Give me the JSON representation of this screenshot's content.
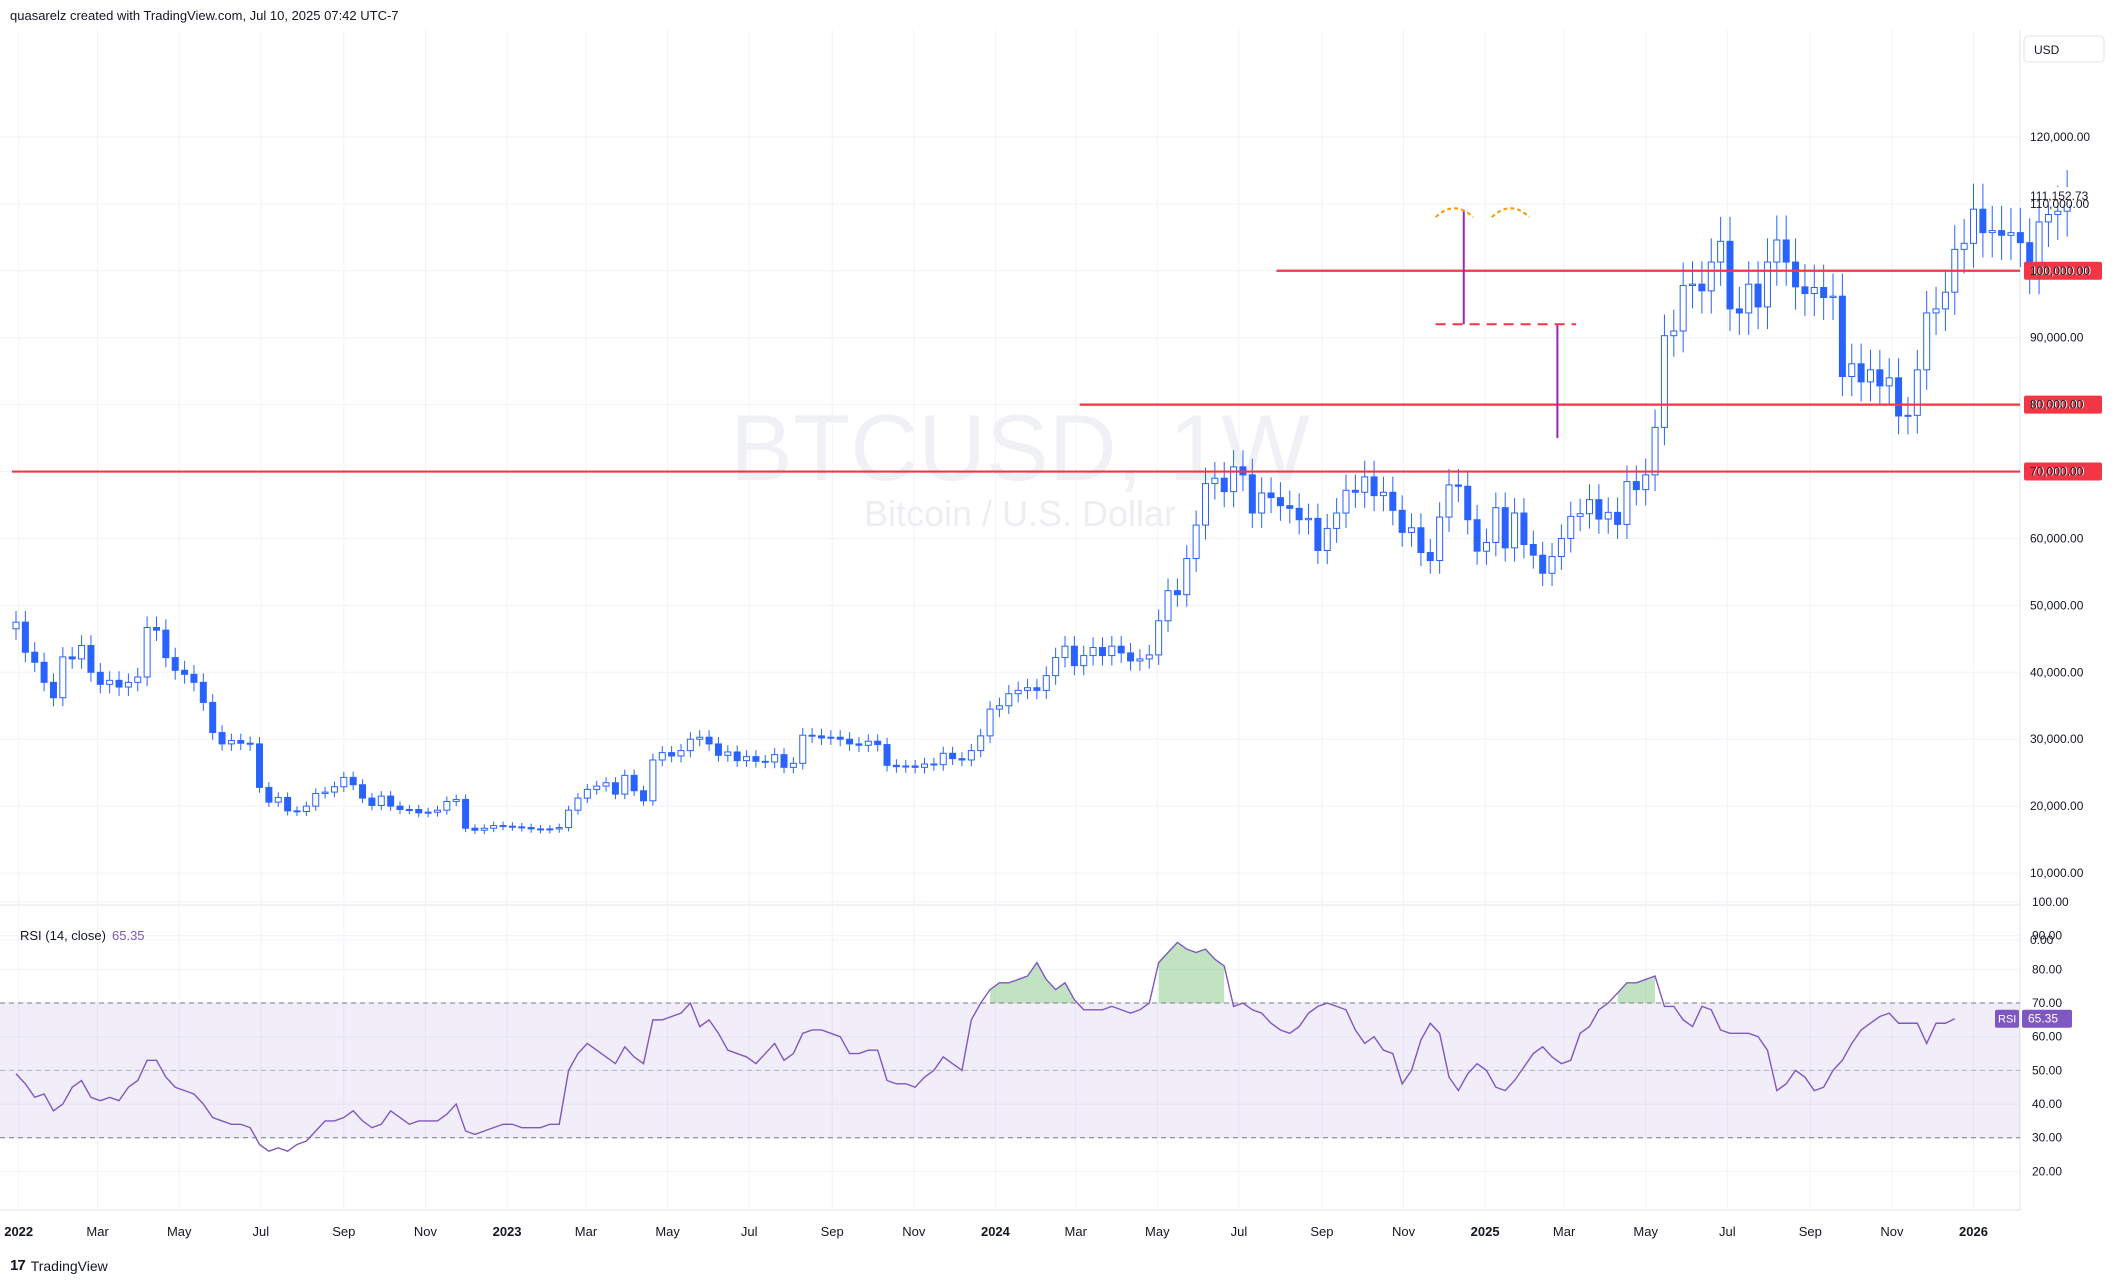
{
  "header": {
    "caption": "quasarelz created with TradingView.com, Jul 10, 2025 07:42 UTC-7"
  },
  "footer": {
    "logo_text": "17",
    "brand": "TradingView",
    "logo_icon": "tradingview-logo-icon"
  },
  "watermark": {
    "symbol": "BTCUSD, 1W",
    "description": "Bitcoin / U.S. Dollar"
  },
  "colors": {
    "up_border": "#2962ff",
    "up_fill": "#ffffff",
    "down": "#2962ff",
    "level_line": "#f23645",
    "rsi_line": "#7e57c2",
    "rsi_band": "#7e57c2",
    "overbought_fill": "#4caf50",
    "purple_wick": "#9c27b0",
    "dome": "#ff9800",
    "current_price_bg": "#ffffff"
  },
  "chart_data": [
    {
      "type": "candlestick",
      "symbol": "BTCUSD, 1W",
      "title": "Bitcoin / U.S. Dollar",
      "currency": "USD",
      "ylim": [
        0,
        130000
      ],
      "y_ticks": [
        0,
        10000,
        20000,
        30000,
        40000,
        50000,
        60000,
        70000,
        80000,
        90000,
        100000,
        110000,
        120000
      ],
      "y_tick_labels": [
        "0.00",
        "10,000.00",
        "20,000.00",
        "30,000.00",
        "40,000.00",
        "50,000.00",
        "60,000.00",
        "70,000.00",
        "80,000.00",
        "90,000.00",
        "100,000.00",
        "110,000.00",
        "120,000.00"
      ],
      "x_labels": [
        {
          "date": "2022-01-01",
          "label": "2022"
        },
        {
          "date": "2022-03-01",
          "label": "Mar"
        },
        {
          "date": "2022-05-01",
          "label": "May"
        },
        {
          "date": "2022-07-01",
          "label": "Jul"
        },
        {
          "date": "2022-09-01",
          "label": "Sep"
        },
        {
          "date": "2022-11-01",
          "label": "Nov"
        },
        {
          "date": "2023-01-01",
          "label": "2023"
        },
        {
          "date": "2023-03-01",
          "label": "Mar"
        },
        {
          "date": "2023-05-01",
          "label": "May"
        },
        {
          "date": "2023-07-01",
          "label": "Jul"
        },
        {
          "date": "2023-09-01",
          "label": "Sep"
        },
        {
          "date": "2023-11-01",
          "label": "Nov"
        },
        {
          "date": "2024-01-01",
          "label": "2024"
        },
        {
          "date": "2024-03-01",
          "label": "Mar"
        },
        {
          "date": "2024-05-01",
          "label": "May"
        },
        {
          "date": "2024-07-01",
          "label": "Jul"
        },
        {
          "date": "2024-09-01",
          "label": "Sep"
        },
        {
          "date": "2024-11-01",
          "label": "Nov"
        },
        {
          "date": "2025-01-01",
          "label": "2025"
        },
        {
          "date": "2025-03-01",
          "label": "Mar"
        },
        {
          "date": "2025-05-01",
          "label": "May"
        },
        {
          "date": "2025-07-01",
          "label": "Jul"
        },
        {
          "date": "2025-09-01",
          "label": "Sep"
        },
        {
          "date": "2025-11-01",
          "label": "Nov"
        },
        {
          "date": "2026-01-01",
          "label": "2026"
        }
      ],
      "x_range": [
        "2021-12-27",
        "2026-02-01"
      ],
      "closes": [
        47500,
        43000,
        41500,
        38500,
        36200,
        42300,
        42000,
        44000,
        40000,
        38200,
        38800,
        37800,
        38500,
        39300,
        46700,
        46300,
        42200,
        40300,
        39700,
        38500,
        35500,
        31000,
        29300,
        29800,
        29400,
        29300,
        22800,
        20600,
        21300,
        19300,
        19200,
        20000,
        21900,
        22100,
        22900,
        24300,
        23200,
        21200,
        20100,
        21500,
        20000,
        19500,
        19500,
        19000,
        19100,
        19400,
        20700,
        21000,
        16700,
        16400,
        16700,
        17100,
        17000,
        16900,
        16800,
        16600,
        16500,
        16600,
        16800,
        19400,
        21200,
        22500,
        23000,
        23500,
        21800,
        24600,
        22300,
        20800,
        26900,
        28000,
        27500,
        28300,
        30000,
        30300,
        29300,
        27600,
        28100,
        26800,
        27400,
        26700,
        26600,
        27700,
        25800,
        26400,
        30600,
        30500,
        30200,
        30300,
        30000,
        29300,
        29100,
        29700,
        29200,
        26100,
        25900,
        26000,
        25800,
        26300,
        26200,
        27900,
        27100,
        26900,
        28300,
        30500,
        34500,
        35000,
        36800,
        37300,
        37700,
        37300,
        39500,
        42200,
        43900,
        41000,
        42500,
        43700,
        42500,
        43900,
        42900,
        41700,
        42000,
        42600,
        47700,
        52200,
        51600,
        57000,
        62000,
        68200,
        69000,
        67000,
        70700,
        69500,
        63800,
        66800,
        66100,
        64900,
        64500,
        62800,
        63000,
        58200,
        61500,
        63800,
        67200,
        66900,
        69200,
        66400,
        66900,
        64200,
        60900,
        61600,
        57900,
        56700,
        63200,
        68000,
        67800,
        62800,
        58100,
        59400,
        64600,
        58600,
        63800,
        59100,
        57500,
        54800,
        57300,
        60000,
        63300,
        63700,
        65800,
        62900,
        63900,
        62100,
        68500,
        67300,
        69500,
        76600,
        90300,
        91000,
        97800,
        98000,
        97000,
        101300,
        104400,
        94300,
        93700,
        98000,
        94600,
        101300,
        104600,
        101300,
        97600,
        96600,
        97500,
        96000,
        96200,
        84200,
        86100,
        83400,
        85200,
        82800,
        84000,
        78300,
        78400,
        85200,
        93700,
        94300,
        96800,
        103200,
        104100,
        109200,
        105700,
        106000,
        105300,
        105700,
        104200,
        100000,
        107300,
        108400,
        108900,
        111152.73
      ],
      "levels": [
        {
          "price": 100000,
          "label": "100,000.00",
          "from": "2024-07-29"
        },
        {
          "price": 80000,
          "label": "80,000.00",
          "from": "2024-03-04"
        },
        {
          "price": 70000,
          "label": "70,000.00",
          "from": "2021-12-27"
        }
      ],
      "current_price": 111152.73,
      "current_price_label": "111,152.73",
      "annotations": [
        {
          "kind": "vertical-line",
          "date": "2024-12-16",
          "from": 92000,
          "to": 109000
        },
        {
          "kind": "vertical-line",
          "date": "2025-02-24",
          "from": 75000,
          "to": 92000
        },
        {
          "kind": "dashed-neckline",
          "from_date": "2024-11-25",
          "to_date": "2025-03-10",
          "price": 92000
        },
        {
          "kind": "dome",
          "from_date": "2024-11-25",
          "to_date": "2024-12-23",
          "price": 108000
        },
        {
          "kind": "dome",
          "from_date": "2025-01-06",
          "to_date": "2025-02-03",
          "price": 108000
        }
      ]
    },
    {
      "type": "line",
      "title": "RSI (14, close)",
      "title_prefix": "RSI (14, close)",
      "value_label": "65.35",
      "badge": "RSI",
      "ylim": [
        13,
        100
      ],
      "y_ticks": [
        20,
        30,
        40,
        50,
        60,
        70,
        80,
        90,
        100
      ],
      "y_tick_labels": [
        "20.00",
        "30.00",
        "40.00",
        "50.00",
        "60.00",
        "70.00",
        "80.00",
        "90.00",
        "100.00"
      ],
      "band": [
        30,
        70
      ],
      "midline": 50,
      "values": [
        49,
        46,
        42,
        43,
        38,
        40,
        45,
        47,
        42,
        41,
        42,
        41,
        45,
        47,
        53,
        53,
        48,
        45,
        44,
        43,
        40,
        36,
        35,
        34,
        34,
        33,
        28,
        26,
        27,
        26,
        28,
        29,
        32,
        35,
        35,
        36,
        38,
        35,
        33,
        34,
        38,
        36,
        34,
        35,
        35,
        35,
        37,
        40,
        32,
        31,
        32,
        33,
        34,
        34,
        33,
        33,
        33,
        34,
        34,
        50,
        55,
        58,
        56,
        54,
        52,
        57,
        54,
        52,
        65,
        65,
        66,
        67,
        70,
        63,
        65,
        61,
        56,
        55,
        54,
        52,
        55,
        58,
        53,
        55,
        61,
        62,
        62,
        61,
        60,
        55,
        55,
        56,
        56,
        47,
        46,
        46,
        45,
        48,
        50,
        54,
        52,
        50,
        65,
        70,
        74,
        76,
        76,
        77,
        78,
        82,
        77,
        74,
        76,
        71,
        68,
        68,
        68,
        69,
        68,
        67,
        68,
        70,
        82,
        85,
        88,
        86,
        85,
        86,
        83,
        81,
        69,
        70,
        68,
        67,
        64,
        62,
        61,
        63,
        67,
        69,
        70,
        69,
        68,
        62,
        58,
        60,
        56,
        55,
        46,
        50,
        59,
        64,
        61,
        48,
        44,
        49,
        52,
        50,
        45,
        44,
        47,
        51,
        55,
        57,
        54,
        52,
        53,
        61,
        63,
        68,
        70,
        73,
        76,
        76,
        77,
        78,
        69,
        69,
        65,
        63,
        69,
        68,
        62,
        61,
        61,
        61,
        60,
        56,
        44,
        46,
        50,
        48,
        44,
        45,
        50,
        53,
        58,
        62,
        64,
        66,
        67,
        64,
        64,
        64,
        58,
        64,
        64,
        65.35
      ]
    }
  ]
}
